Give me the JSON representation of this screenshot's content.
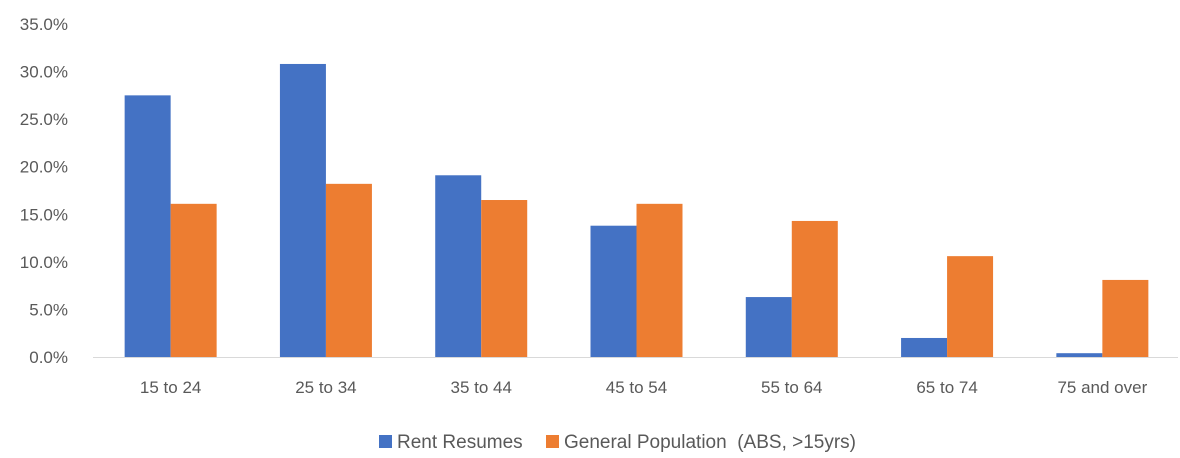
{
  "chart_data": {
    "type": "bar",
    "title": "",
    "xlabel": "",
    "ylabel": "",
    "categories": [
      "15 to 24",
      "25 to 34",
      "35 to 44",
      "45 to 54",
      "55 to 64",
      "65 to 74",
      "75 and over"
    ],
    "series": [
      {
        "name": "Rent Resumes",
        "color": "#4472c4",
        "values": [
          27.5,
          30.8,
          19.1,
          13.8,
          6.3,
          2.0,
          0.4
        ]
      },
      {
        "name": "General Population  (ABS, >15yrs)",
        "color": "#ed7d31",
        "values": [
          16.1,
          18.2,
          16.5,
          16.1,
          14.3,
          10.6,
          8.1
        ]
      }
    ],
    "ylim": [
      0,
      35
    ],
    "ytick_step": 5,
    "ytick_format": "percent-1dp",
    "grid": false,
    "legend_position": "bottom"
  }
}
